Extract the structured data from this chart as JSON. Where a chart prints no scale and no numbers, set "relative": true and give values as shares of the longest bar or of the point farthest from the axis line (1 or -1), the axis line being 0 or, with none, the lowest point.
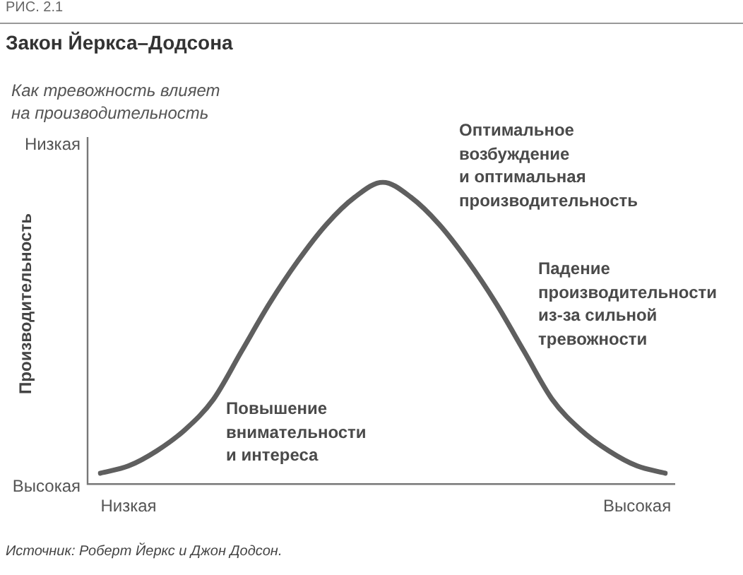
{
  "chart_data": {
    "type": "line",
    "title": "Закон Йеркса–Додсона",
    "subtitle": "Как тревожность влияет\nна производительность",
    "ylabel": "Производительность",
    "relative": true,
    "categories": [
      null,
      "Низкая",
      null,
      null,
      null,
      null,
      null,
      null,
      null,
      null,
      null,
      null,
      null,
      null,
      null,
      null,
      null,
      null,
      null,
      "Высокая",
      null
    ],
    "series": [
      {
        "color": "#5f5f5f",
        "values": [
          0.036,
          0.06,
          0.11,
          0.18,
          0.28,
          0.44,
          0.6,
          0.74,
          0.86,
          0.95,
          1,
          0.95,
          0.86,
          0.74,
          0.6,
          0.44,
          0.28,
          0.18,
          0.11,
          0.06,
          0.036
        ]
      }
    ],
    "annotations": [
      "РИС. 2.1",
      "Низкая",
      "Высокая",
      "Повышение\nвнимательности\nи интереса",
      "Оптимальное\nвозбуждение\nи оптимальная\nпроизводительность",
      "Падение\nпроизводительности\nиз-за сильной\nтревожности",
      "Источник: Роберт Йеркс и Джон Додсон."
    ],
    "grid": false,
    "legend": false,
    "marker": "none",
    "line_style": "solid"
  }
}
